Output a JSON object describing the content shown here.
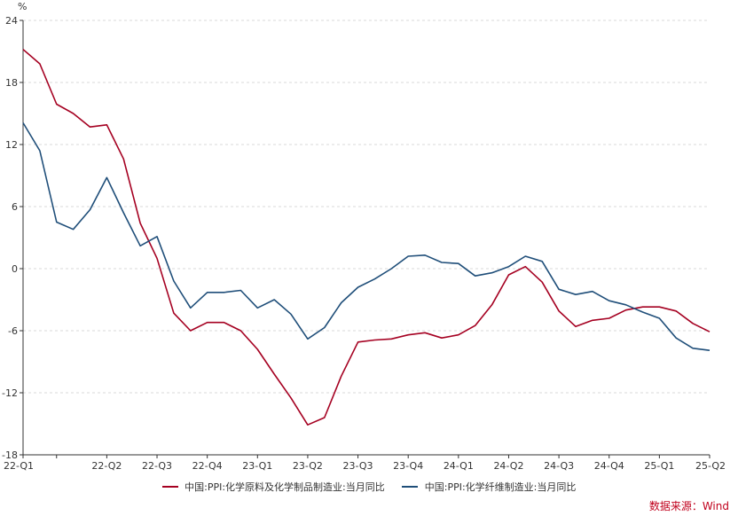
{
  "chart_data": {
    "type": "line",
    "unit_label": "%",
    "ylim": [
      -18,
      24
    ],
    "yticks": [
      24,
      18,
      12,
      6,
      0,
      -6,
      -12,
      -18
    ],
    "x_ticks": [
      {
        "i": 0,
        "label": "22-Q1"
      },
      {
        "i": 5,
        "label": "22-Q2"
      },
      {
        "i": 8,
        "label": "22-Q3"
      },
      {
        "i": 11,
        "label": "22-Q4"
      },
      {
        "i": 14,
        "label": "23-Q1"
      },
      {
        "i": 17,
        "label": "23-Q2"
      },
      {
        "i": 20,
        "label": "23-Q3"
      },
      {
        "i": 23,
        "label": "23-Q4"
      },
      {
        "i": 26,
        "label": "24-Q1"
      },
      {
        "i": 29,
        "label": "24-Q2"
      },
      {
        "i": 32,
        "label": "24-Q3"
      },
      {
        "i": 35,
        "label": "24-Q4"
      },
      {
        "i": 38,
        "label": "25-Q1"
      },
      {
        "i": 41,
        "label": "25-Q2"
      }
    ],
    "grid": true,
    "legend_position": "bottom",
    "series": [
      {
        "name": "中国:PPI:化学原料及化学制品制造业:当月同比",
        "color": "#a50021",
        "values": [
          21.2,
          19.8,
          15.9,
          15.0,
          13.7,
          13.9,
          10.6,
          4.4,
          1.0,
          -4.3,
          -6.0,
          -5.2,
          -5.2,
          -6.0,
          -7.8,
          -10.2,
          -12.5,
          -15.1,
          -14.4,
          -10.4,
          -7.1,
          -6.9,
          -6.8,
          -6.4,
          -6.2,
          -6.7,
          -6.4,
          -5.5,
          -3.5,
          -0.6,
          0.2,
          -1.3,
          -4.1,
          -5.6,
          -5.0,
          -4.8,
          -4.0,
          -3.7,
          -3.7,
          -4.1,
          -5.3,
          -6.1
        ]
      },
      {
        "name": "中国:PPI:化学纤维制造业:当月同比",
        "color": "#1f4e79",
        "values": [
          14.1,
          11.4,
          4.5,
          3.8,
          5.7,
          8.8,
          5.4,
          2.2,
          3.1,
          -1.2,
          -3.8,
          -2.3,
          -2.3,
          -2.1,
          -3.8,
          -3.0,
          -4.4,
          -6.8,
          -5.7,
          -3.3,
          -1.8,
          -1.0,
          0.0,
          1.2,
          1.3,
          0.6,
          0.5,
          -0.7,
          -0.4,
          0.2,
          1.2,
          0.7,
          -2.0,
          -2.5,
          -2.2,
          -3.1,
          -3.5,
          -4.2,
          -4.8,
          -6.7,
          -7.7,
          -7.9
        ]
      }
    ],
    "source_note": "数据来源：Wind"
  }
}
